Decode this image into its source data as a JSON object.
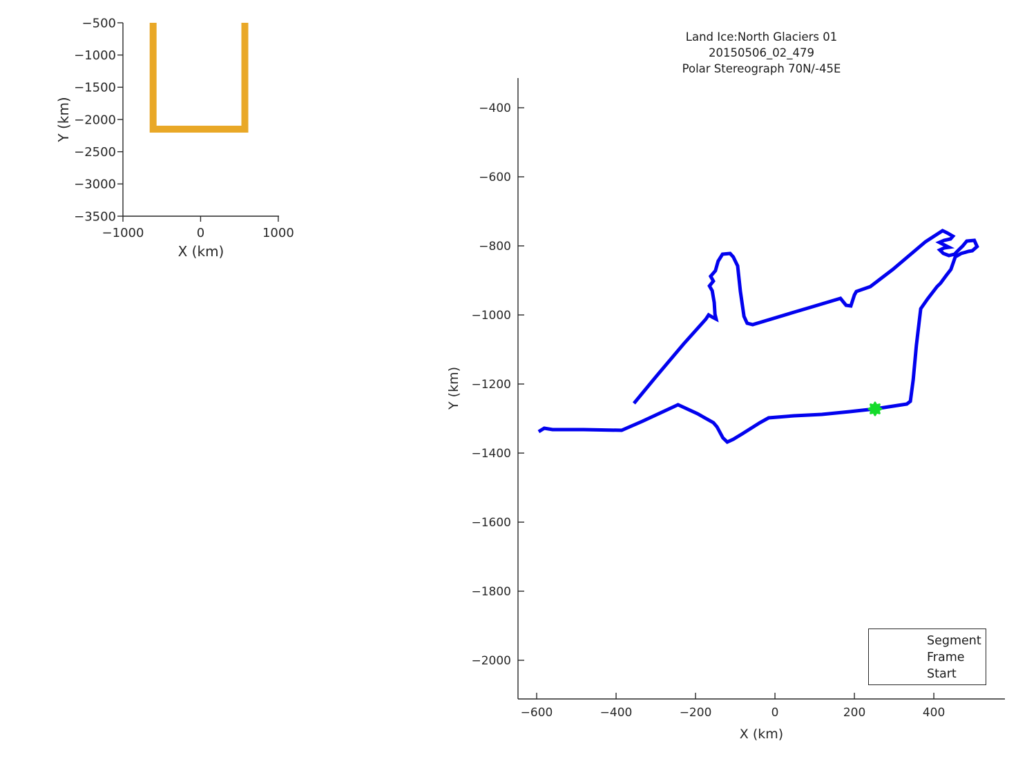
{
  "figure": {
    "background": "#FFFFFF",
    "axis_color": "#262626",
    "text_color": "#1A1A1A"
  },
  "chart_data": [
    {
      "id": "overview",
      "type": "line",
      "title": "",
      "xlabel": "X (km)",
      "ylabel": "Y (km)",
      "xlim": [
        -1000,
        1010
      ],
      "ylim": [
        -3500,
        -500
      ],
      "xticks": [
        -1000,
        0,
        1000
      ],
      "yticks": [
        -500,
        -1000,
        -1500,
        -2000,
        -2500,
        -3000,
        -3500
      ],
      "grid": false,
      "series": [
        {
          "name": "flight-track-overview",
          "color": "#E9A827",
          "line_width": 10,
          "points": [
            [
              -611,
              -500
            ],
            [
              -611,
              -2150
            ],
            [
              570,
              -2150
            ],
            [
              570,
              -500
            ]
          ]
        }
      ]
    },
    {
      "id": "main",
      "type": "line",
      "title_lines": [
        "Land Ice:North Glaciers 01",
        "20150506_02_479",
        "Polar Stereograph 70N/-45E"
      ],
      "xlabel": "X (km)",
      "ylabel": "Y (km)",
      "xlim": [
        -647,
        579
      ],
      "ylim": [
        -2112,
        -314
      ],
      "xticks": [
        -600,
        -400,
        -200,
        0,
        200,
        400
      ],
      "yticks": [
        -400,
        -600,
        -800,
        -1000,
        -1200,
        -1400,
        -1600,
        -1800,
        -2000
      ],
      "grid": false,
      "legend_position": "bottom-right",
      "series": [
        {
          "name": "Segment",
          "color": "#0202EE",
          "line_width": 5,
          "points": [
            [
              -595,
              -1338
            ],
            [
              -581,
              -1328
            ],
            [
              -560,
              -1332
            ],
            [
              -482,
              -1332
            ],
            [
              -386,
              -1334
            ],
            [
              -334,
              -1308
            ],
            [
              -244,
              -1260
            ],
            [
              -195,
              -1286
            ],
            [
              -155,
              -1312
            ],
            [
              -146,
              -1324
            ],
            [
              -131,
              -1356
            ],
            [
              -120,
              -1368
            ],
            [
              -105,
              -1360
            ],
            [
              -82,
              -1344
            ],
            [
              -38,
              -1312
            ],
            [
              -16,
              -1298
            ],
            [
              48,
              -1292
            ],
            [
              118,
              -1288
            ],
            [
              188,
              -1280
            ],
            [
              252,
              -1272
            ],
            [
              309,
              -1262
            ],
            [
              332,
              -1258
            ],
            [
              341,
              -1250
            ],
            [
              348,
              -1188
            ],
            [
              356,
              -1088
            ],
            [
              367,
              -982
            ],
            [
              384,
              -954
            ],
            [
              408,
              -918
            ],
            [
              417,
              -908
            ],
            [
              431,
              -886
            ],
            [
              443,
              -868
            ],
            [
              454,
              -832
            ],
            [
              469,
              -822
            ],
            [
              487,
              -816
            ],
            [
              497,
              -814
            ],
            [
              509,
              -802
            ],
            [
              502,
              -784
            ],
            [
              483,
              -786
            ],
            [
              473,
              -800
            ],
            [
              464,
              -810
            ],
            [
              452,
              -824
            ],
            [
              438,
              -828
            ],
            [
              424,
              -822
            ],
            [
              415,
              -812
            ],
            [
              426,
              -806
            ],
            [
              438,
              -804
            ],
            [
              424,
              -796
            ],
            [
              414,
              -790
            ],
            [
              426,
              -784
            ],
            [
              442,
              -780
            ],
            [
              448,
              -772
            ],
            [
              433,
              -762
            ],
            [
              422,
              -756
            ],
            [
              379,
              -788
            ],
            [
              297,
              -868
            ],
            [
              240,
              -918
            ],
            [
              205,
              -932
            ],
            [
              200,
              -942
            ],
            [
              191,
              -974
            ],
            [
              179,
              -972
            ],
            [
              165,
              -952
            ],
            [
              101,
              -974
            ],
            [
              48,
              -992
            ],
            [
              -56,
              -1028
            ],
            [
              -70,
              -1024
            ],
            [
              -78,
              -1004
            ],
            [
              -87,
              -932
            ],
            [
              -94,
              -858
            ],
            [
              -105,
              -832
            ],
            [
              -113,
              -822
            ],
            [
              -132,
              -824
            ],
            [
              -143,
              -844
            ],
            [
              -150,
              -872
            ],
            [
              -162,
              -888
            ],
            [
              -155,
              -902
            ],
            [
              -165,
              -916
            ],
            [
              -158,
              -930
            ],
            [
              -153,
              -964
            ],
            [
              -151,
              -998
            ],
            [
              -148,
              -1012
            ],
            [
              -158,
              -1006
            ],
            [
              -167,
              -1000
            ],
            [
              -174,
              -1012
            ],
            [
              -230,
              -1084
            ],
            [
              -299,
              -1178
            ],
            [
              -355,
              -1256
            ]
          ]
        },
        {
          "name": "Frame",
          "color": "#EE1111",
          "line_width": 2,
          "points": []
        },
        {
          "name": "Start",
          "color": "#15DB2B",
          "marker": "star",
          "points": [
            [
              252,
              -1272
            ]
          ]
        }
      ]
    }
  ],
  "legend": {
    "items": [
      {
        "label": "Segment",
        "marker": "dot",
        "color": "#0202EE"
      },
      {
        "label": "Frame",
        "marker": "dot",
        "color": "#EE1111"
      },
      {
        "label": "Start",
        "marker": "star",
        "color": "#15DB2B"
      }
    ]
  }
}
